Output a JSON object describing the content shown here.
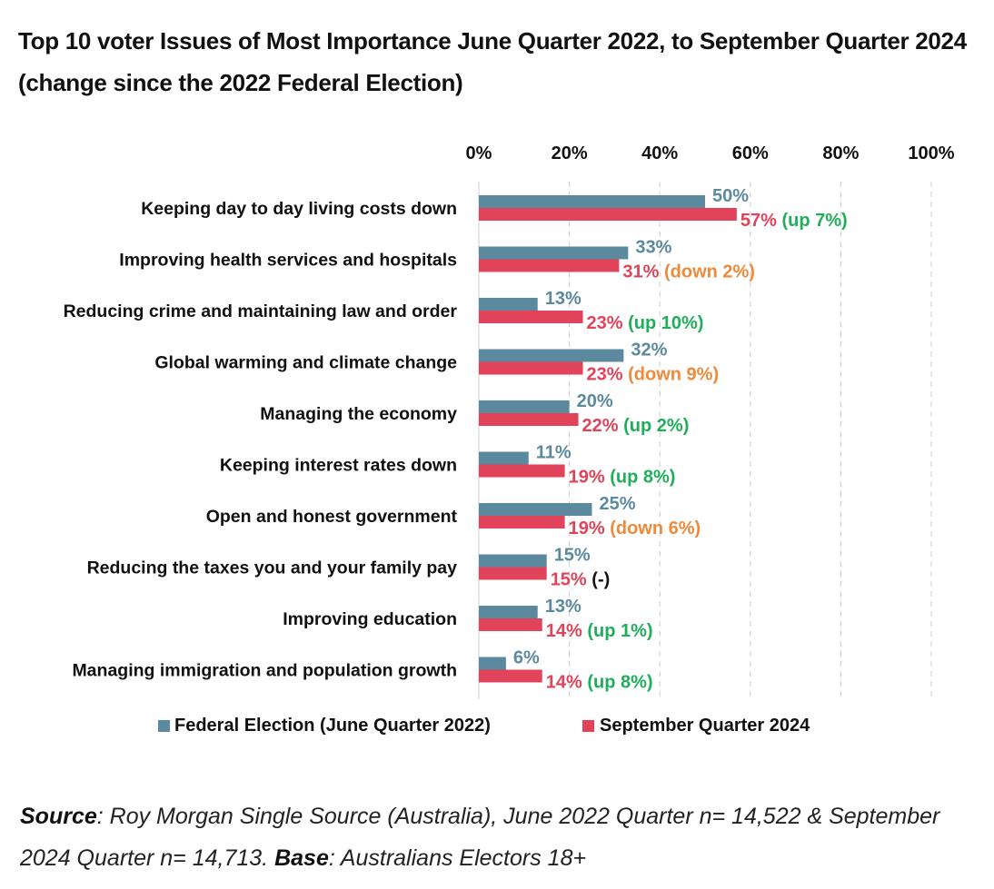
{
  "title": "Top 10 voter Issues of Most Importance June Quarter 2022, to September Quarter 2024 (change since the 2022 Federal Election)",
  "colors": {
    "series_2022": "#5b8a9e",
    "series_2024": "#e0435a",
    "change_up": "#1fae5a",
    "change_down": "#ee8a3a",
    "change_none": "#111111",
    "gridline": "#cfcfcf"
  },
  "chart_data": {
    "type": "bar",
    "orientation": "horizontal",
    "title": "Top 10 voter Issues of Most Importance June Quarter 2022, to September Quarter 2024 (change since the 2022 Federal Election)",
    "xlabel": "",
    "ylabel": "",
    "xlim": [
      0,
      100
    ],
    "x_ticks": [
      "0%",
      "20%",
      "40%",
      "60%",
      "80%",
      "100%"
    ],
    "x_tick_values": [
      0,
      20,
      40,
      60,
      80,
      100
    ],
    "x_axis_position": "top",
    "grid": true,
    "legend_position": "bottom",
    "categories": [
      "Keeping day to day living costs down",
      "Improving health services and hospitals",
      "Reducing crime and maintaining law and order",
      "Global warming and climate change",
      "Managing the economy",
      "Keeping interest rates down",
      "Open and honest government",
      "Reducing the taxes you and your family pay",
      "Improving education",
      "Managing immigration and population growth"
    ],
    "series": [
      {
        "name": "Federal Election (June Quarter 2022)",
        "values": [
          50,
          33,
          13,
          32,
          20,
          11,
          25,
          15,
          13,
          6
        ],
        "labels": [
          "50%",
          "33%",
          "13%",
          "32%",
          "20%",
          "11%",
          "25%",
          "15%",
          "13%",
          "6%"
        ]
      },
      {
        "name": "September Quarter 2024",
        "values": [
          57,
          31,
          23,
          23,
          22,
          19,
          19,
          15,
          14,
          14
        ],
        "labels": [
          "57%",
          "31%",
          "23%",
          "23%",
          "22%",
          "19%",
          "19%",
          "15%",
          "14%",
          "14%"
        ]
      }
    ],
    "change_annotations": [
      {
        "text": "(up 7%)",
        "direction": "up"
      },
      {
        "text": "(down 2%)",
        "direction": "down"
      },
      {
        "text": "(up 10%)",
        "direction": "up"
      },
      {
        "text": "(down 9%)",
        "direction": "down"
      },
      {
        "text": "(up 2%)",
        "direction": "up"
      },
      {
        "text": "(up 8%)",
        "direction": "up"
      },
      {
        "text": "(down 6%)",
        "direction": "down"
      },
      {
        "text": "(-)",
        "direction": "none"
      },
      {
        "text": "(up 1%)",
        "direction": "up"
      },
      {
        "text": "(up 8%)",
        "direction": "up"
      }
    ]
  },
  "source": {
    "source_label": "Source",
    "source_text": ": Roy Morgan Single Source (Australia), June 2022 Quarter n= 14,522 & September 2024 Quarter n= 14,713. ",
    "base_label": "Base",
    "base_text": ": Australians Electors 18+"
  }
}
